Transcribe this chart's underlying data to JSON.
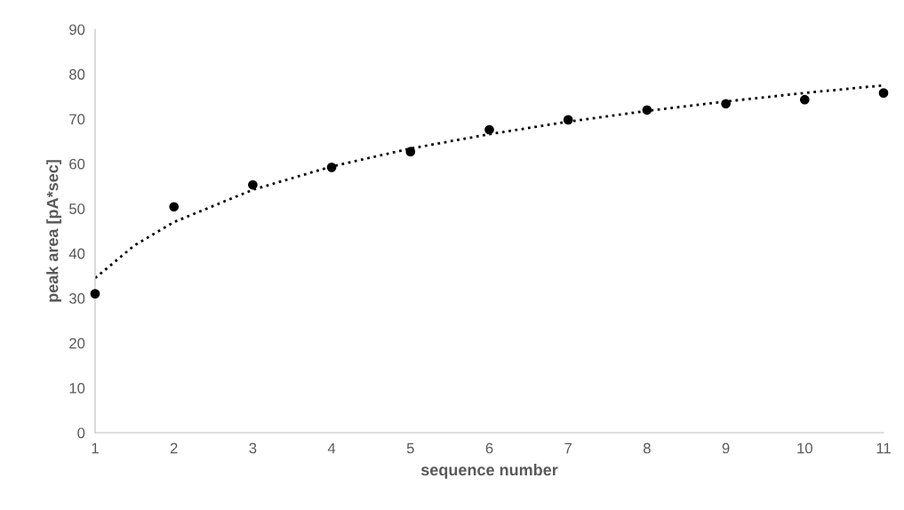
{
  "chart_data": {
    "type": "scatter",
    "xlabel": "sequence number",
    "ylabel": "peak area [pA*sec]",
    "xlim": [
      1,
      11
    ],
    "xticks": [
      1,
      2,
      3,
      4,
      5,
      6,
      7,
      8,
      9,
      10,
      11
    ],
    "ylim": [
      0,
      90
    ],
    "yticks": [
      0,
      10,
      20,
      30,
      40,
      50,
      60,
      70,
      80,
      90
    ],
    "grid": false,
    "legend": false,
    "series": [
      {
        "color": "#000000",
        "marker": "circle",
        "x": [
          1,
          2,
          3,
          4,
          5,
          6,
          7,
          8,
          9,
          10,
          11
        ],
        "values": [
          31,
          50.4,
          55.3,
          59.2,
          62.7,
          67.6,
          69.8,
          72,
          73.4,
          74.3,
          75.8
        ]
      },
      {
        "type": "line",
        "color": "#000000",
        "line_style": "dotted",
        "marker": "none",
        "x": [
          1,
          1.5,
          2,
          3,
          4,
          5,
          6,
          7,
          8,
          9,
          10,
          11
        ],
        "values": [
          34.5,
          41.8,
          47,
          54.2,
          59.4,
          63.4,
          66.6,
          69.4,
          71.8,
          73.9,
          75.8,
          77.5
        ]
      }
    ]
  }
}
